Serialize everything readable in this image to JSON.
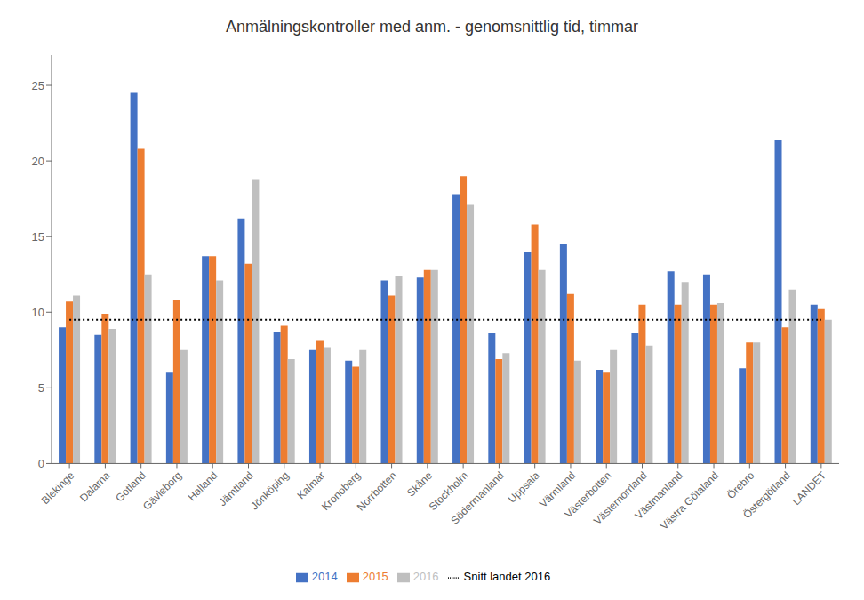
{
  "chart_data": {
    "type": "bar",
    "title": "Anmälningskontroller med anm. - genomsnittlig tid, timmar",
    "categories": [
      "Blekinge",
      "Dalarna",
      "Gotland",
      "Gävleborg",
      "Halland",
      "Jämtland",
      "Jönköping",
      "Kalmar",
      "Kronoberg",
      "Norrbotten",
      "Skåne",
      "Stockholm",
      "Södermanland",
      "Uppsala",
      "Värmland",
      "Västerbotten",
      "Västernorrland",
      "Västmanland",
      "Västra Götaland",
      "Örebro",
      "Östergötland",
      "LANDET"
    ],
    "series": [
      {
        "name": "2014",
        "type": "bar",
        "color": "#4472C4",
        "values": [
          9.0,
          8.5,
          24.5,
          6.0,
          13.7,
          16.2,
          8.7,
          7.5,
          6.8,
          12.1,
          12.3,
          17.8,
          8.6,
          14.0,
          14.5,
          6.2,
          8.6,
          12.7,
          12.5,
          6.3,
          21.4,
          10.5
        ]
      },
      {
        "name": "2015",
        "type": "bar",
        "color": "#ED7D31",
        "values": [
          10.7,
          9.9,
          20.8,
          10.8,
          13.7,
          13.2,
          9.1,
          8.1,
          6.4,
          11.1,
          12.8,
          19.0,
          6.9,
          15.8,
          11.2,
          6.0,
          10.5,
          10.5,
          10.5,
          8.0,
          9.0,
          10.2
        ]
      },
      {
        "name": "2016",
        "type": "bar",
        "color": "#BFBFBF",
        "values": [
          11.1,
          8.9,
          12.5,
          7.5,
          12.1,
          18.8,
          6.9,
          7.7,
          7.5,
          12.4,
          12.8,
          17.1,
          7.3,
          12.8,
          6.8,
          7.5,
          7.8,
          12.0,
          10.6,
          8.0,
          11.5,
          9.5
        ]
      },
      {
        "name": "Snitt landet 2016",
        "type": "line",
        "line_style": "dotted",
        "color": "#000000",
        "values": [
          9.5,
          9.5,
          9.5,
          9.5,
          9.5,
          9.5,
          9.5,
          9.5,
          9.5,
          9.5,
          9.5,
          9.5,
          9.5,
          9.5,
          9.5,
          9.5,
          9.5,
          9.5,
          9.5,
          9.5,
          9.5,
          9.5
        ]
      }
    ],
    "ylim": [
      0,
      27
    ],
    "yticks": [
      0,
      5,
      10,
      15,
      20,
      25
    ],
    "grid": false,
    "legend": "bottom"
  }
}
